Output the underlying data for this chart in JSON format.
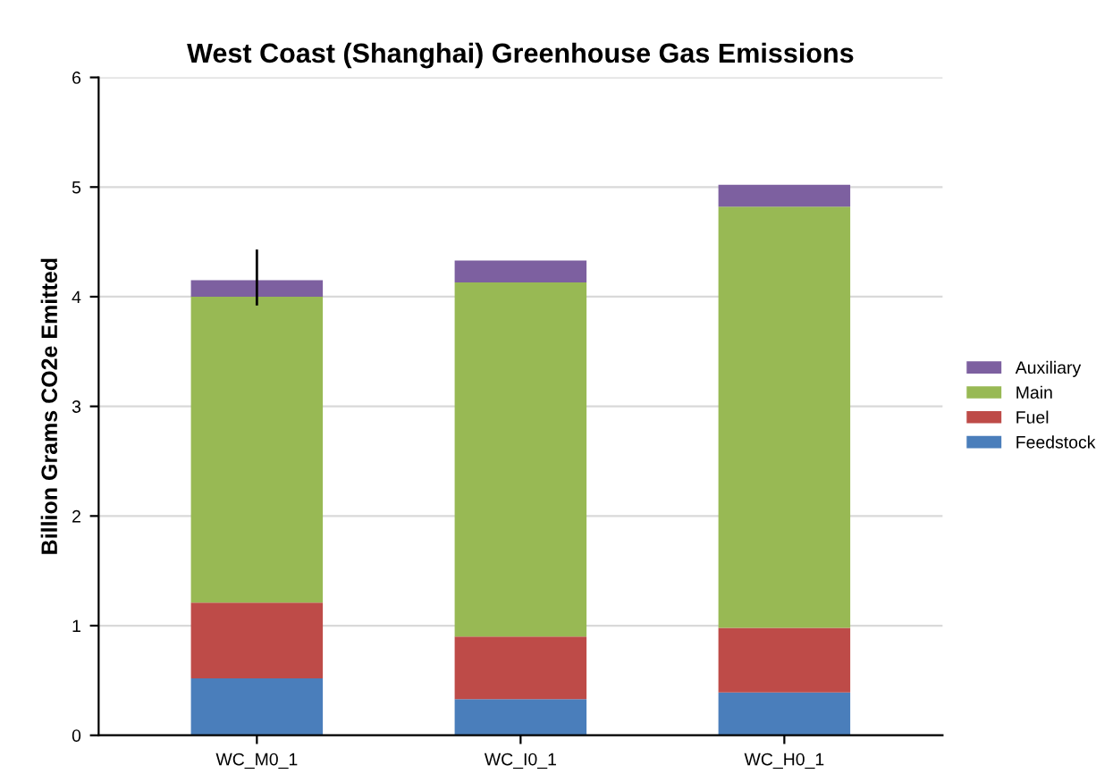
{
  "chart_data": {
    "type": "bar",
    "title": "West Coast (Shanghai) Greenhouse Gas Emissions",
    "ylabel": "Billion Grams CO2e Emitted",
    "categories": [
      "WC_M0_1",
      "WC_I0_1",
      "WC_H0_1"
    ],
    "stacked": true,
    "series": [
      {
        "name": "Feedstock",
        "color": "#4a7ebb",
        "values": [
          0.52,
          0.33,
          0.39
        ]
      },
      {
        "name": "Fuel",
        "color": "#be4b48",
        "values": [
          0.69,
          0.57,
          0.59
        ]
      },
      {
        "name": "Main",
        "color": "#98b954",
        "values": [
          2.79,
          3.23,
          3.84
        ]
      },
      {
        "name": "Auxiliary",
        "color": "#7d60a0",
        "values": [
          0.15,
          0.2,
          0.2
        ],
        "errors": [
          [
            3.92,
            4.43
          ],
          null,
          null
        ]
      }
    ],
    "ylim": [
      0,
      6
    ],
    "yticks": [
      0,
      1,
      2,
      3,
      4,
      5,
      6
    ],
    "grid": "y",
    "legend": "right"
  }
}
